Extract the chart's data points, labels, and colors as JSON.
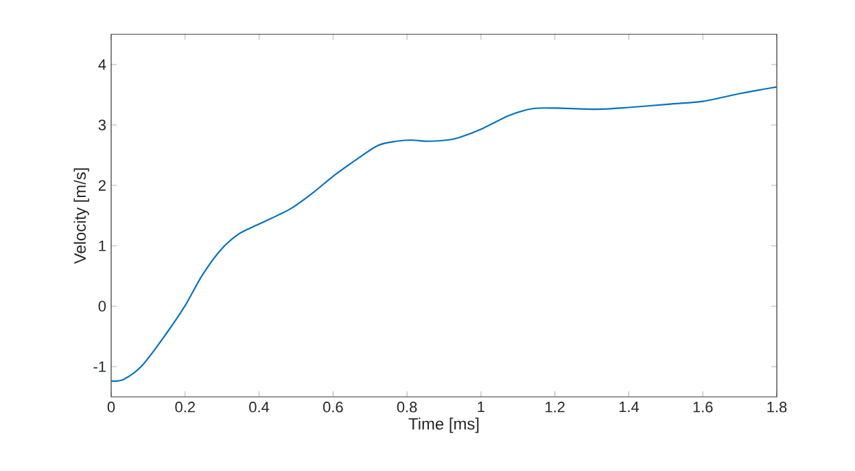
{
  "chart_data": {
    "type": "line",
    "xlabel": "Time [ms]",
    "ylabel": "Velocity [m/s]",
    "x": [
      0,
      0.034,
      0.084,
      0.146,
      0.2,
      0.246,
      0.296,
      0.346,
      0.4,
      0.484,
      0.546,
      0.6,
      0.659,
      0.721,
      0.771,
      0.81,
      0.859,
      0.909,
      0.94,
      1.0,
      1.077,
      1.14,
      1.2,
      1.315,
      1.4,
      1.5,
      1.6,
      1.7,
      1.8
    ],
    "series": [
      {
        "color": "#0072bd",
        "values": [
          -1.24,
          -1.21,
          -0.98,
          -0.48,
          0.01,
          0.51,
          0.93,
          1.2,
          1.36,
          1.61,
          1.88,
          2.15,
          2.41,
          2.66,
          2.73,
          2.75,
          2.73,
          2.75,
          2.79,
          2.93,
          3.16,
          3.27,
          3.28,
          3.26,
          3.29,
          3.34,
          3.39,
          3.52,
          3.63
        ]
      }
    ],
    "xlim": [
      0,
      1.8
    ],
    "ylim": [
      -1.5,
      4.5
    ],
    "xticks": [
      0,
      0.2,
      0.4,
      0.6,
      0.8,
      1,
      1.2,
      1.4,
      1.6,
      1.8
    ],
    "yticks": [
      -1,
      0,
      1,
      2,
      3,
      4
    ],
    "grid": false,
    "marker": "none",
    "line_style": "solid"
  }
}
